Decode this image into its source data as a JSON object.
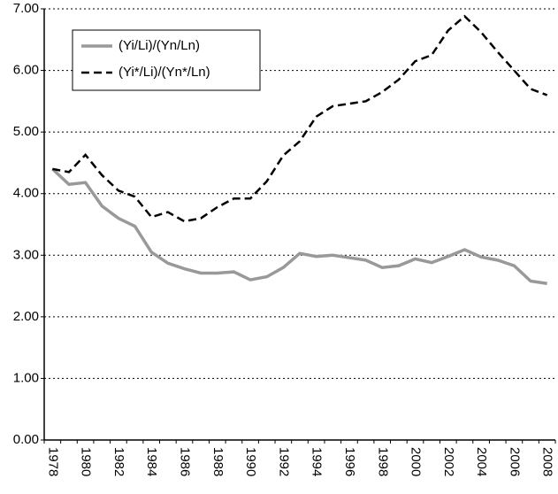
{
  "chart_data": {
    "type": "line",
    "categories": [
      "1978",
      null,
      "1980",
      null,
      "1982",
      null,
      "1984",
      null,
      "1986",
      null,
      "1988",
      null,
      "1990",
      null,
      "1992",
      null,
      "1994",
      null,
      "1996",
      null,
      "1998",
      null,
      "2000",
      null,
      "2002",
      null,
      "2004",
      null,
      "2006",
      null,
      "2008"
    ],
    "series": [
      {
        "name": "(Yi/Li)/(Yn/Ln)",
        "color": "#999999",
        "dash": "solid",
        "values": [
          4.4,
          4.15,
          4.18,
          3.8,
          3.6,
          3.47,
          3.05,
          2.87,
          2.78,
          2.71,
          2.71,
          2.73,
          2.6,
          2.65,
          2.8,
          3.03,
          2.98,
          3.0,
          2.96,
          2.92,
          2.8,
          2.83,
          2.94,
          2.88,
          2.98,
          3.09,
          2.97,
          2.92,
          2.83,
          2.58,
          2.54
        ]
      },
      {
        "name": "(Yi*/Li)/(Yn*/Ln)",
        "color": "#000000",
        "dash": "dashed",
        "values": [
          4.4,
          4.35,
          4.63,
          4.3,
          4.05,
          3.95,
          3.62,
          3.7,
          3.55,
          3.6,
          3.78,
          3.92,
          3.92,
          4.2,
          4.62,
          4.85,
          5.25,
          5.42,
          5.46,
          5.5,
          5.65,
          5.85,
          6.15,
          6.25,
          6.65,
          6.88,
          6.62,
          6.3,
          6.0,
          5.7,
          5.6
        ]
      }
    ],
    "ylim": [
      0,
      7
    ],
    "yticks": [
      {
        "value": 0,
        "label": "0.00"
      },
      {
        "value": 1,
        "label": "1.00"
      },
      {
        "value": 2,
        "label": "2.00"
      },
      {
        "value": 3,
        "label": "3.00"
      },
      {
        "value": 4,
        "label": "4.00"
      },
      {
        "value": 5,
        "label": "5.00"
      },
      {
        "value": 6,
        "label": "6.00"
      },
      {
        "value": 7,
        "label": "7.00"
      }
    ],
    "grid": true,
    "legend": "top-left"
  }
}
